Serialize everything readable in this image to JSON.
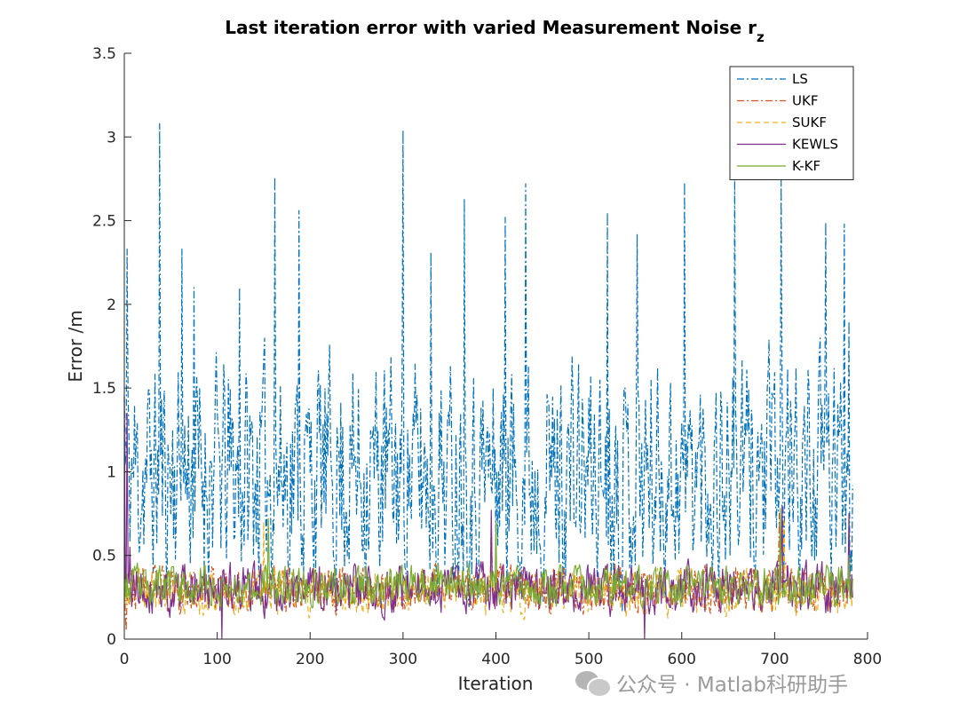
{
  "chart_data": {
    "type": "line",
    "title": "Last iteration error with varied Measurement Noise r",
    "title_subscript": "z",
    "xlabel": "Iteration",
    "ylabel": "Error /m",
    "xlim": [
      0,
      800
    ],
    "ylim": [
      0,
      3.5
    ],
    "xticks": [
      0,
      100,
      200,
      300,
      400,
      500,
      600,
      700,
      800
    ],
    "yticks": [
      0,
      0.5,
      1,
      1.5,
      2,
      2.5,
      3,
      3.5
    ],
    "ytick_labels": [
      "0",
      "0.5",
      "1",
      "1.5",
      "2",
      "2.5",
      "3",
      "3.5"
    ],
    "grid": false,
    "legend_position": "top-right",
    "n_points": 785,
    "series": [
      {
        "name": "LS",
        "color": "#0072BD",
        "style": "dashdot",
        "base": 1.0,
        "spread": 0.9,
        "noise_seed": 11,
        "anchors": [
          [
            0,
            1.45
          ],
          [
            3,
            2.33
          ],
          [
            38,
            3.08
          ],
          [
            62,
            2.33
          ],
          [
            75,
            2.1
          ],
          [
            124,
            2.1
          ],
          [
            162,
            2.76
          ],
          [
            188,
            2.56
          ],
          [
            300,
            3.04
          ],
          [
            330,
            2.31
          ],
          [
            366,
            2.63
          ],
          [
            410,
            2.52
          ],
          [
            432,
            2.72
          ],
          [
            520,
            2.55
          ],
          [
            552,
            2.42
          ],
          [
            603,
            2.73
          ],
          [
            657,
            2.75
          ],
          [
            707,
            2.74
          ],
          [
            755,
            2.49
          ],
          [
            775,
            2.48
          ],
          [
            780,
            1.9
          ]
        ]
      },
      {
        "name": "UKF",
        "color": "#D95319",
        "style": "dashdot",
        "base": 0.3,
        "spread": 0.18,
        "noise_seed": 23,
        "anchors": [
          [
            0,
            0.55
          ],
          [
            2,
            0.05
          ],
          [
            395,
            0.7
          ],
          [
            705,
            0.75
          ],
          [
            780,
            0.4
          ]
        ]
      },
      {
        "name": "SUKF",
        "color": "#EDB120",
        "style": "dashed",
        "base": 0.28,
        "spread": 0.18,
        "noise_seed": 37,
        "anchors": [
          [
            0,
            0.35
          ],
          [
            150,
            0.7
          ],
          [
            395,
            0.73
          ],
          [
            710,
            0.72
          ],
          [
            780,
            0.35
          ]
        ]
      },
      {
        "name": "KEWLS",
        "color": "#7E2F8E",
        "style": "solid",
        "base": 0.3,
        "spread": 0.2,
        "noise_seed": 41,
        "anchors": [
          [
            0,
            1.45
          ],
          [
            3,
            1.35
          ],
          [
            6,
            0.55
          ],
          [
            105,
            0.0
          ],
          [
            395,
            0.77
          ],
          [
            560,
            0.0
          ],
          [
            708,
            0.8
          ],
          [
            780,
            0.75
          ]
        ]
      },
      {
        "name": "K-KF",
        "color": "#77AC30",
        "style": "solid",
        "base": 0.32,
        "spread": 0.16,
        "noise_seed": 53,
        "anchors": [
          [
            0,
            0.2
          ],
          [
            155,
            0.72
          ],
          [
            400,
            0.7
          ],
          [
            706,
            0.78
          ],
          [
            780,
            0.5
          ]
        ]
      }
    ]
  },
  "watermark": {
    "text": "公众号 · Matlab科研助手",
    "icon": "wechat-icon"
  }
}
